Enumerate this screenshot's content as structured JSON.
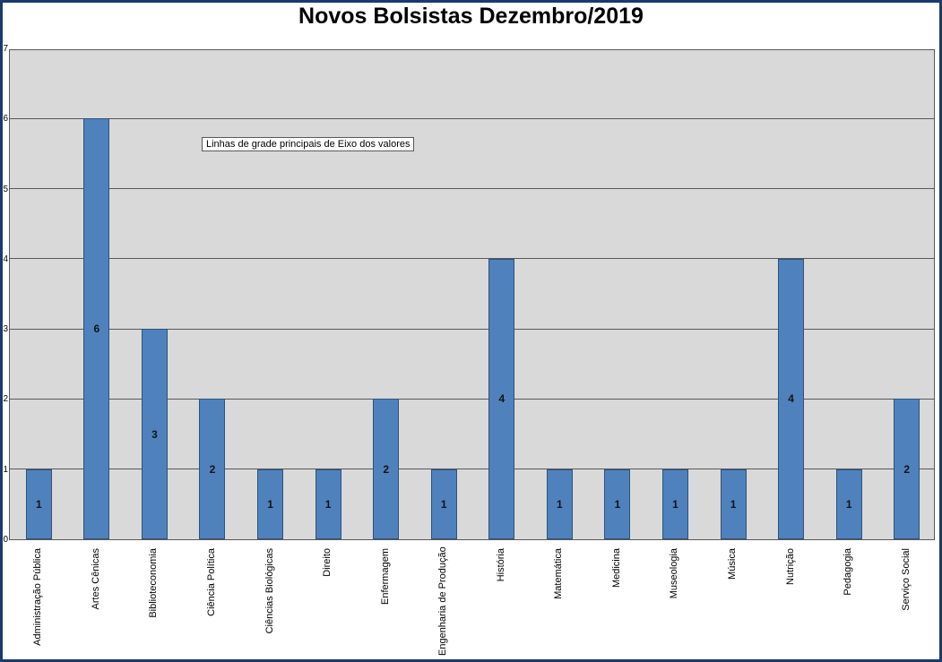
{
  "window": {
    "border_color": "#1B3A6B",
    "background": "#FFFFFF"
  },
  "tooltip": {
    "text": "Linhas de grade principais de Eixo dos valores"
  },
  "chart_data": {
    "type": "bar",
    "title": "Novos Bolsistas Dezembro/2019",
    "categories": [
      "Administração Pública",
      "Artes Cênicas",
      "Biblioteconomia",
      "Ciência Política",
      "Ciências Biológicas",
      "Direito",
      "Enfermagem",
      "Engenharia de Produção",
      "História",
      "Matemática",
      "Medicina",
      "Museologia",
      "Música",
      "Nutrição",
      "Pedagogia",
      "Serviço Social"
    ],
    "values": [
      1,
      6,
      3,
      2,
      1,
      1,
      2,
      1,
      4,
      1,
      1,
      1,
      1,
      4,
      1,
      2
    ],
    "data_labels": [
      "1",
      "6",
      "3",
      "2",
      "1",
      "1",
      "2",
      "1",
      "4",
      "1",
      "1",
      "1",
      "1",
      "4",
      "1",
      "2"
    ],
    "xlabel": "",
    "ylabel": "",
    "ylim": [
      0,
      7
    ],
    "yticks": [
      "0",
      "1",
      "2",
      "3",
      "4",
      "5",
      "6",
      "7"
    ],
    "grid": true,
    "legend_position": "none",
    "bar_color": "#4F81BD",
    "bar_border_color": "#2D5479",
    "plot_background": "#D9D9D9",
    "gridline_color": "#595959"
  }
}
